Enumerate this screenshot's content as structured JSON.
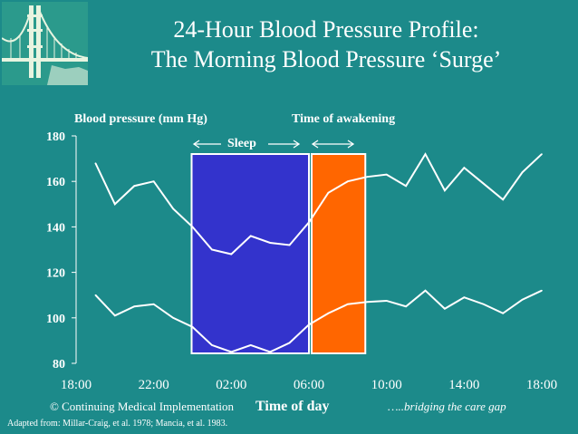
{
  "slide": {
    "title_line1": "24-Hour Blood Pressure Profile:",
    "title_line2": "The Morning Blood Pressure ‘Surge’",
    "footer_left": "© Continuing Medical Implementation",
    "footer_right": "…..bridging the care gap",
    "credit": "Adapted from: Millar-Craig, et al. 1978; Mancia, et al. 1983.",
    "background_color": "#1c8a8a",
    "logo_icon": "golden-gate-bridge-icon"
  },
  "chart_data": {
    "type": "line",
    "ylabel": "Blood pressure (mm Hg)",
    "xlabel": "Time of day",
    "ylim": [
      80,
      180
    ],
    "yticks": [
      80,
      100,
      120,
      140,
      160,
      180
    ],
    "xlim_hours": [
      18,
      42
    ],
    "xticks": [
      "18:00",
      "22:00",
      "02:00",
      "06:00",
      "10:00",
      "14:00",
      "18:00"
    ],
    "x_hours": [
      19,
      20,
      21,
      22,
      23,
      24,
      25,
      26,
      27,
      28,
      29,
      30,
      31,
      32,
      33,
      34,
      35,
      36,
      37,
      38,
      39,
      40,
      41,
      42
    ],
    "series": [
      {
        "values": [
          168,
          150,
          158,
          160,
          148,
          140,
          130,
          128,
          136,
          133,
          132,
          142,
          155,
          160,
          162,
          163,
          158,
          172,
          156,
          166,
          159,
          152,
          164,
          172
        ]
      },
      {
        "values": [
          110,
          101,
          105,
          106,
          100,
          96,
          88,
          85,
          88,
          85,
          89,
          97,
          102,
          106,
          107,
          107.5,
          105,
          112,
          104,
          109,
          106,
          102,
          108,
          112
        ]
      }
    ],
    "annotations": {
      "sleep_label": "Sleep",
      "sleep_start_hour": 24,
      "sleep_end_hour": 30,
      "sleep_color": "#3333cc",
      "awakening_label": "Time of awakening",
      "awakening_start_hour": 30,
      "awakening_end_hour": 33,
      "awakening_color": "#ff6600"
    },
    "line_color": "#ffffff"
  }
}
